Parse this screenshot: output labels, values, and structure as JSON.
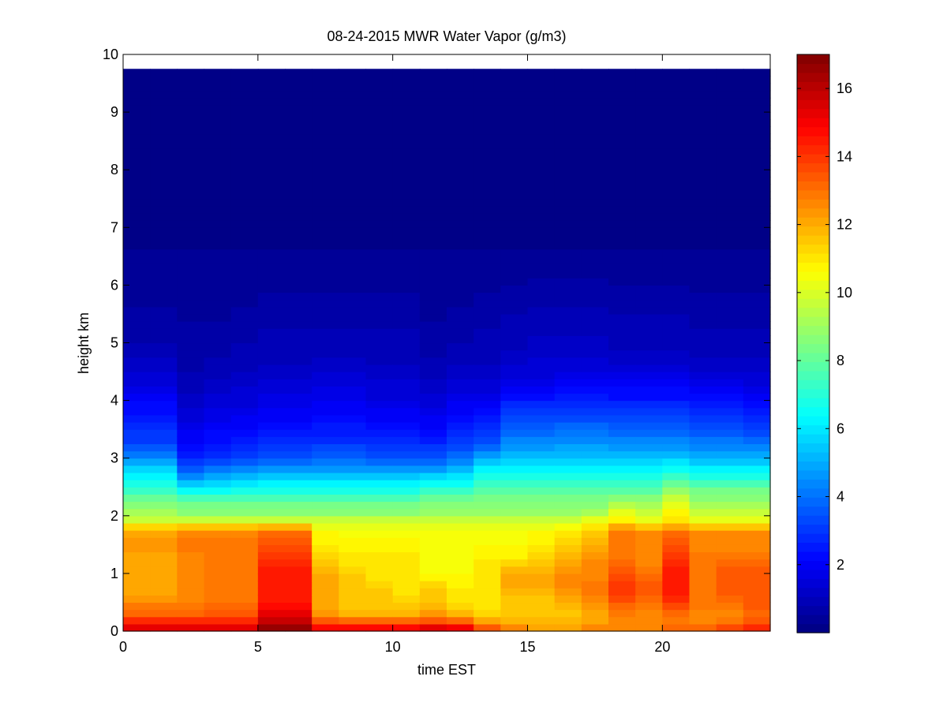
{
  "chart_data": {
    "type": "heatmap",
    "title": "08-24-2015 MWR Water Vapor (g/m3)",
    "xlabel": "time EST",
    "ylabel": "height km",
    "xlim": [
      0,
      24
    ],
    "ylim": [
      0,
      10
    ],
    "xticks": [
      0,
      5,
      10,
      15,
      20
    ],
    "yticks": [
      0,
      1,
      2,
      3,
      4,
      5,
      6,
      7,
      8,
      9,
      10
    ],
    "x_tick_labels": [
      "0",
      "5",
      "10",
      "15",
      "20"
    ],
    "y_tick_labels": [
      "0",
      "1",
      "2",
      "3",
      "4",
      "5",
      "6",
      "7",
      "8",
      "9",
      "10"
    ],
    "colormap": "jet",
    "colorbar": {
      "clim": [
        0,
        17
      ],
      "ticks": [
        2,
        4,
        6,
        8,
        10,
        12,
        14,
        16
      ],
      "tick_labels": [
        "2",
        "4",
        "6",
        "8",
        "10",
        "12",
        "14",
        "16"
      ]
    },
    "time_hours": [
      0,
      1,
      2,
      3,
      4,
      5,
      6,
      7,
      8,
      9,
      10,
      11,
      12,
      13,
      14,
      15,
      16,
      17,
      18,
      19,
      20,
      21,
      22,
      23
    ],
    "time_step_hours": 1,
    "data_top_km": 9.75,
    "profile_heights_km": [
      0,
      0.1,
      0.25,
      0.5,
      0.75,
      1,
      1.25,
      1.5,
      1.75,
      1.9,
      2.0,
      2.25,
      2.5,
      2.75,
      3,
      3.25,
      3.5,
      3.75,
      4,
      4.25,
      4.5,
      4.75,
      5,
      5.5,
      6,
      6.5,
      7,
      8,
      9.75
    ],
    "profiles": [
      {
        "time": 0,
        "values": [
          15.5,
          15,
          13.5,
          12.5,
          12,
          12,
          12,
          12.5,
          12,
          10,
          9.5,
          8.5,
          7,
          6,
          4.5,
          3.3,
          2.8,
          2.5,
          2,
          1.6,
          1.3,
          1,
          0.8,
          0.6,
          0.4,
          0.3,
          0.2,
          0.1,
          0.1
        ]
      },
      {
        "time": 1,
        "values": [
          15.5,
          15,
          13.5,
          12.5,
          12,
          12,
          12,
          12.5,
          12,
          10,
          9.5,
          8.5,
          7,
          6,
          4.5,
          3.3,
          2.8,
          2.5,
          2,
          1.6,
          1.3,
          1,
          0.8,
          0.6,
          0.4,
          0.3,
          0.2,
          0.1,
          0.1
        ]
      },
      {
        "time": 2,
        "values": [
          15.5,
          15,
          13.5,
          12.5,
          12.5,
          12.5,
          12.5,
          13,
          12.5,
          10,
          9,
          8,
          6,
          4,
          2.8,
          2.2,
          1.8,
          1.5,
          1.2,
          1,
          0.8,
          0.7,
          0.6,
          0.5,
          0.4,
          0.3,
          0.2,
          0.1,
          0.1
        ]
      },
      {
        "time": 3,
        "values": [
          15.5,
          15,
          13.5,
          13,
          13,
          13,
          13,
          13,
          12.5,
          10,
          9,
          8,
          6,
          4.5,
          3,
          2.5,
          2,
          1.7,
          1.4,
          1.2,
          0.9,
          0.8,
          0.7,
          0.5,
          0.4,
          0.3,
          0.2,
          0.1,
          0.1
        ]
      },
      {
        "time": 4,
        "values": [
          15.5,
          15,
          13.5,
          13,
          13,
          13,
          13,
          13,
          12.5,
          10,
          9,
          8,
          6.5,
          4.8,
          3.2,
          2.6,
          2.1,
          1.8,
          1.5,
          1.3,
          1,
          0.9,
          0.8,
          0.6,
          0.4,
          0.3,
          0.2,
          0.1,
          0.1
        ]
      },
      {
        "time": 5,
        "values": [
          17,
          16.5,
          15.5,
          14.5,
          14.5,
          14.5,
          14,
          13.5,
          13,
          10,
          9,
          8,
          6.5,
          5,
          3.5,
          2.8,
          2.3,
          2,
          1.7,
          1.5,
          1.2,
          1,
          0.9,
          0.7,
          0.5,
          0.3,
          0.2,
          0.1,
          0.1
        ]
      },
      {
        "time": 6,
        "values": [
          17,
          16.5,
          15.5,
          14.5,
          14.5,
          14.5,
          14,
          13.5,
          13,
          10,
          9,
          8,
          6.5,
          5,
          3.5,
          2.8,
          2.3,
          2,
          1.7,
          1.5,
          1.2,
          1,
          0.9,
          0.7,
          0.5,
          0.3,
          0.2,
          0.1,
          0.1
        ]
      },
      {
        "time": 7,
        "values": [
          15,
          14.5,
          12.5,
          12,
          12,
          12,
          11.5,
          11,
          10.5,
          10,
          9,
          8,
          6.5,
          5,
          3.8,
          3,
          2.5,
          2.2,
          1.8,
          1.6,
          1.3,
          1.1,
          0.9,
          0.7,
          0.5,
          0.3,
          0.2,
          0.1,
          0.1
        ]
      },
      {
        "time": 8,
        "values": [
          15,
          14.5,
          12,
          11.5,
          11.5,
          11.5,
          11,
          10.8,
          10.5,
          10,
          9,
          8,
          6.5,
          5,
          3.8,
          3,
          2.5,
          2.2,
          1.8,
          1.6,
          1.3,
          1.1,
          0.9,
          0.7,
          0.5,
          0.3,
          0.2,
          0.1,
          0.1
        ]
      },
      {
        "time": 9,
        "values": [
          15,
          14.5,
          12,
          11.5,
          11.5,
          11,
          11,
          10.8,
          10.5,
          10,
          9,
          8,
          6.5,
          5,
          3.5,
          2.8,
          2.3,
          2,
          1.6,
          1.4,
          1.2,
          1,
          0.9,
          0.7,
          0.5,
          0.3,
          0.2,
          0.1,
          0.1
        ]
      },
      {
        "time": 10,
        "values": [
          15,
          14.5,
          12,
          11.5,
          11,
          11,
          11,
          10.8,
          10.5,
          10,
          9,
          8,
          6.5,
          5,
          3.5,
          2.8,
          2.3,
          2,
          1.6,
          1.4,
          1.2,
          1,
          0.9,
          0.7,
          0.5,
          0.3,
          0.2,
          0.1,
          0.1
        ]
      },
      {
        "time": 11,
        "values": [
          15.5,
          15,
          12.5,
          11.5,
          11.5,
          10.5,
          10.5,
          10.5,
          10.5,
          10,
          9,
          8.5,
          7,
          5.2,
          3.5,
          2.8,
          2.2,
          1.8,
          1.4,
          1.2,
          1,
          0.8,
          0.7,
          0.5,
          0.4,
          0.3,
          0.2,
          0.1,
          0.1
        ]
      },
      {
        "time": 12,
        "values": [
          15.5,
          14.5,
          12,
          11,
          11,
          10.5,
          10.5,
          10.5,
          10.5,
          10,
          9,
          8.5,
          7,
          5.5,
          4,
          3.2,
          2.6,
          2.2,
          1.8,
          1.5,
          1.2,
          1,
          0.8,
          0.6,
          0.4,
          0.3,
          0.2,
          0.1,
          0.1
        ]
      },
      {
        "time": 13,
        "values": [
          14,
          13,
          11.5,
          11,
          11,
          11,
          11,
          10.5,
          10.5,
          10,
          9,
          8.5,
          7.5,
          6.5,
          5,
          3.5,
          2.8,
          2.3,
          1.8,
          1.5,
          1.2,
          1,
          0.9,
          0.7,
          0.5,
          0.3,
          0.2,
          0.1,
          0.1
        ]
      },
      {
        "time": 14,
        "values": [
          13,
          12.5,
          11.5,
          11.5,
          12,
          12,
          11,
          10.5,
          10.5,
          10,
          9,
          8.5,
          7.5,
          6.5,
          5.5,
          4.5,
          3.8,
          3.2,
          2.5,
          1.8,
          1.5,
          1.2,
          1,
          0.8,
          0.5,
          0.3,
          0.2,
          0.1,
          0.1
        ]
      },
      {
        "time": 15,
        "values": [
          12.5,
          12,
          11.5,
          11.5,
          12,
          12,
          11.5,
          11,
          10.5,
          10,
          9,
          8.5,
          7.5,
          6.5,
          5.5,
          4.5,
          3.8,
          3.2,
          2.5,
          1.8,
          1.5,
          1.3,
          1.1,
          0.9,
          0.6,
          0.3,
          0.2,
          0.1,
          0.1
        ]
      },
      {
        "time": 16,
        "values": [
          12.5,
          12,
          11.5,
          12,
          12.5,
          12.5,
          12,
          11.5,
          11,
          10,
          9,
          8.5,
          7.5,
          6.5,
          5.5,
          4.6,
          3.9,
          3.3,
          2.6,
          2,
          1.6,
          1.3,
          1.1,
          0.9,
          0.6,
          0.3,
          0.2,
          0.1,
          0.1
        ]
      },
      {
        "time": 17,
        "values": [
          13,
          12.5,
          12,
          12.5,
          13,
          12.5,
          12.5,
          12,
          11.5,
          10.5,
          9.5,
          8.5,
          7.5,
          6.5,
          5.5,
          4.6,
          3.9,
          3.3,
          2.6,
          2,
          1.6,
          1.3,
          1.1,
          0.9,
          0.6,
          0.3,
          0.2,
          0.1,
          0.1
        ]
      },
      {
        "time": 18,
        "values": [
          13,
          12.5,
          12.5,
          13.5,
          14,
          13.5,
          13,
          13,
          13,
          11,
          10.5,
          9,
          7.5,
          6.5,
          5.5,
          4.5,
          3.8,
          3.2,
          2.5,
          2,
          1.5,
          1.2,
          1,
          0.8,
          0.5,
          0.3,
          0.2,
          0.1,
          0.1
        ]
      },
      {
        "time": 19,
        "values": [
          13,
          12.5,
          12.5,
          13,
          13.5,
          13,
          12.5,
          12.5,
          12.5,
          10.5,
          10,
          9,
          7.5,
          6.5,
          5.5,
          4.5,
          3.8,
          3.2,
          2.5,
          2,
          1.5,
          1.2,
          1,
          0.8,
          0.5,
          0.3,
          0.2,
          0.1,
          0.1
        ]
      },
      {
        "time": 20,
        "values": [
          13.5,
          13,
          13,
          14,
          14.5,
          14.5,
          14,
          13.5,
          13,
          11,
          11,
          10,
          8.5,
          7,
          5.5,
          4.5,
          3.8,
          3.2,
          2.5,
          2,
          1.5,
          1.2,
          1,
          0.8,
          0.5,
          0.3,
          0.2,
          0.1,
          0.1
        ]
      },
      {
        "time": 21,
        "values": [
          13.5,
          13,
          12.5,
          13,
          13,
          13,
          13,
          12.5,
          12.5,
          10.5,
          10,
          9,
          8,
          6.5,
          5.2,
          4.2,
          3.5,
          3,
          2.3,
          1.8,
          1.4,
          1.1,
          0.9,
          0.7,
          0.5,
          0.3,
          0.2,
          0.1,
          0.1
        ]
      },
      {
        "time": 22,
        "values": [
          14,
          13.5,
          12.5,
          13,
          13.5,
          13.5,
          13,
          12.5,
          12.5,
          10.5,
          10,
          9,
          8,
          6.5,
          5.2,
          4.2,
          3.5,
          3,
          2.3,
          1.8,
          1.4,
          1.1,
          0.9,
          0.7,
          0.5,
          0.3,
          0.2,
          0.1,
          0.1
        ]
      },
      {
        "time": 23,
        "values": [
          14.5,
          14,
          13,
          13.5,
          13.5,
          13.5,
          13,
          12.5,
          12.5,
          10.5,
          10,
          9,
          8,
          6.5,
          5.2,
          4,
          3.2,
          2.8,
          2.2,
          1.6,
          1.3,
          1.1,
          0.9,
          0.7,
          0.5,
          0.3,
          0.2,
          0.1,
          0.1
        ]
      }
    ]
  }
}
